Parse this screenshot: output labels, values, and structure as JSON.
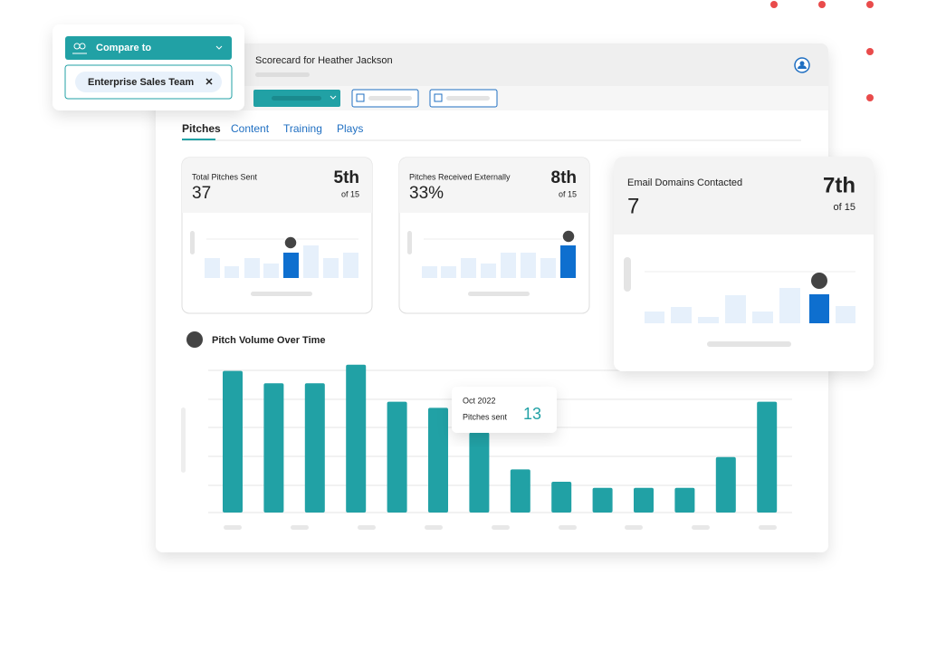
{
  "header": {
    "title": "Scorecard for Heather Jackson"
  },
  "tabs": [
    "Pitches",
    "Content",
    "Training",
    "Plays"
  ],
  "cards": [
    {
      "label": "Total Pitches Sent",
      "value": "37",
      "rank": "5th",
      "of": "of 15"
    },
    {
      "label": "Pitches Received Externally",
      "value": "33%",
      "rank": "8th",
      "of": "of 15"
    },
    {
      "label": "Email Domains Contacted",
      "value": "7",
      "rank": "7th",
      "of": "of 15"
    }
  ],
  "compare": {
    "title": "Compare to",
    "chip": "Enterprise Sales Team"
  },
  "pitch_chart": {
    "title": "Pitch Volume Over Time",
    "color": "#21a1a5",
    "values": [
      23,
      21,
      21,
      24,
      18,
      17,
      13,
      7,
      5,
      4,
      4,
      4,
      9,
      18
    ],
    "tooltip": {
      "category": "Oct 2022",
      "label": "Pitches sent",
      "index": 6
    }
  }
}
